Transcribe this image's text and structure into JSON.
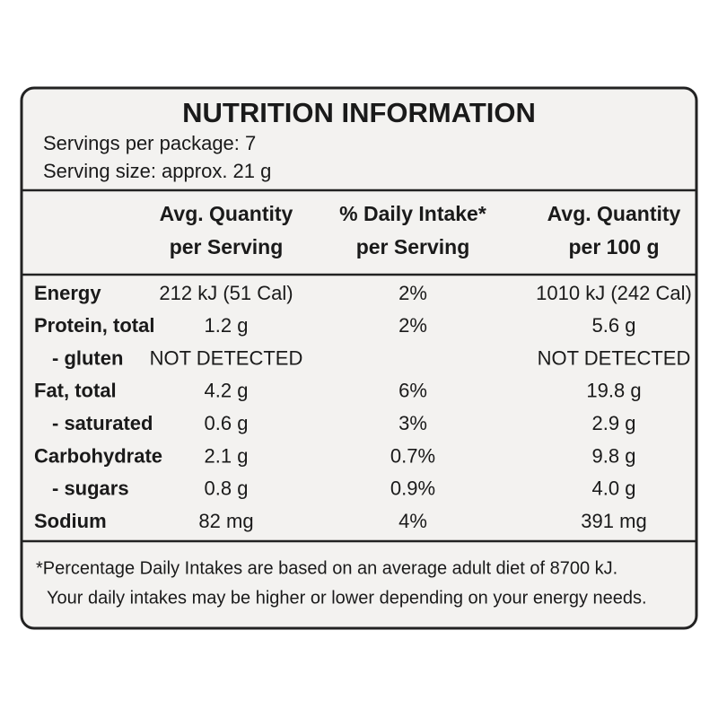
{
  "header": {
    "title": "NUTRITION INFORMATION",
    "servings": "Servings per package: 7",
    "serving_size": "Serving size: approx. 21 g"
  },
  "table": {
    "columns": [
      [
        "Avg. Quantity",
        "per Serving"
      ],
      [
        "% Daily Intake*",
        "per Serving"
      ],
      [
        "Avg. Quantity",
        "per 100 g"
      ]
    ],
    "rows": [
      [
        "Energy",
        "212 kJ (51 Cal)",
        "2%",
        "1010 kJ (242 Cal)"
      ],
      [
        "Protein, total",
        "1.2 g",
        "2%",
        "5.6 g"
      ],
      [
        "- gluten",
        "NOT DETECTED",
        null,
        "NOT DETECTED"
      ],
      [
        "Fat, total",
        "4.2 g",
        "6%",
        "19.8 g"
      ],
      [
        "- saturated",
        "0.6 g",
        "3%",
        "2.9 g"
      ],
      [
        "Carbohydrate",
        "2.1 g",
        "0.7%",
        "9.8 g"
      ],
      [
        "- sugars",
        "0.8 g",
        "0.9%",
        "4.0 g"
      ],
      [
        "Sodium",
        "82 mg",
        "4%",
        "391 mg"
      ]
    ]
  },
  "footnote": [
    "*Percentage Daily Intakes are based on an average adult diet of 8700 kJ.",
    "Your daily intakes may be higher or lower depending on your energy needs."
  ]
}
